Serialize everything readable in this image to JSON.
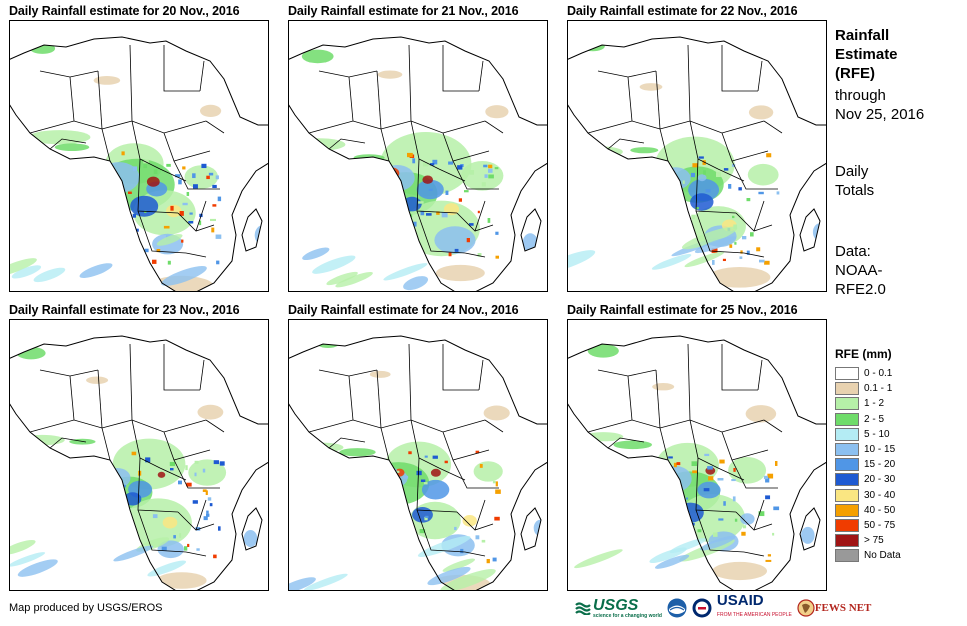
{
  "panels": [
    {
      "title": "Daily Rainfall estimate for 20 Nov., 2016",
      "intensity": 1.0
    },
    {
      "title": "Daily Rainfall estimate for 21 Nov., 2016",
      "intensity": 0.85
    },
    {
      "title": "Daily Rainfall estimate for 22 Nov., 2016",
      "intensity": 0.7
    },
    {
      "title": "Daily Rainfall estimate for 23 Nov., 2016",
      "intensity": 0.65
    },
    {
      "title": "Daily Rainfall estimate for 24 Nov., 2016",
      "intensity": 0.55
    },
    {
      "title": "Daily Rainfall estimate for 25 Nov., 2016",
      "intensity": 0.75
    }
  ],
  "side": {
    "title_lines": [
      "Rainfall",
      "Estimate",
      "(RFE)"
    ],
    "through_lines": [
      "through",
      "Nov 25, 2016"
    ],
    "totals_lines": [
      "Daily",
      "Totals"
    ],
    "data_lines": [
      "Data:",
      "NOAA-",
      "RFE2.0"
    ]
  },
  "legend": {
    "title": "RFE (mm)",
    "items": [
      {
        "label": "0 - 0.1",
        "color": "#ffffff"
      },
      {
        "label": "0.1 - 1",
        "color": "#e8d2b0"
      },
      {
        "label": "1 - 2",
        "color": "#b6f0a8"
      },
      {
        "label": "2 - 5",
        "color": "#6fdc6a"
      },
      {
        "label": "5 - 10",
        "color": "#b4ecf4"
      },
      {
        "label": "10 - 15",
        "color": "#8cc0f0"
      },
      {
        "label": "15 - 20",
        "color": "#5096e6"
      },
      {
        "label": "20 - 30",
        "color": "#1e5ad2"
      },
      {
        "label": "30 - 40",
        "color": "#fae682"
      },
      {
        "label": "40 - 50",
        "color": "#f5a000"
      },
      {
        "label": "50 - 75",
        "color": "#f03c00"
      },
      {
        "label": "> 75",
        "color": "#a01414"
      },
      {
        "label": "No Data",
        "color": "#999999"
      }
    ]
  },
  "credit": "Map produced by USGS/EROS",
  "logos": {
    "usgs": "USGS",
    "usgs_tag": "science for a changing world",
    "usaid": "USAID",
    "usaid_tag": "FROM THE AMERICAN PEOPLE",
    "fews": "FEWS NET"
  }
}
